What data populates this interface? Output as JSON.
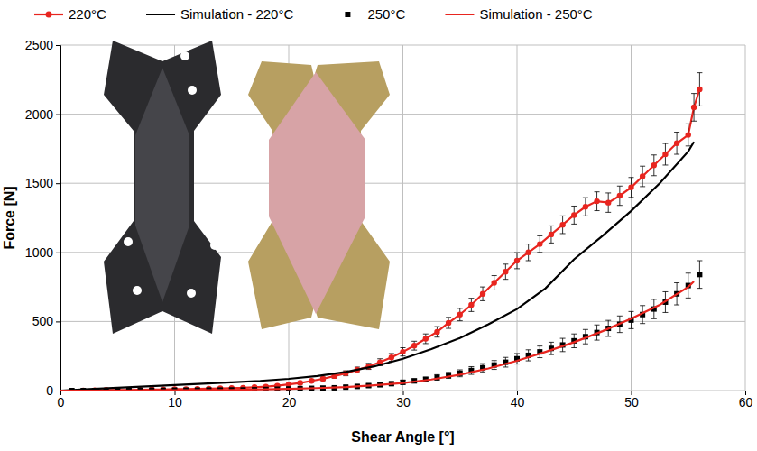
{
  "chart_data": {
    "type": "line",
    "x_label": "Shear Angle [°]",
    "y_label": "Force [N]",
    "xlim": [
      0,
      60
    ],
    "ylim": [
      0,
      2500
    ],
    "xticks": [
      0,
      10,
      20,
      30,
      40,
      50,
      60
    ],
    "yticks": [
      0,
      500,
      1000,
      1500,
      2000,
      2500
    ],
    "grid": true,
    "legend": "top",
    "series": [
      {
        "name": "220°C",
        "color": "#e8251f",
        "type": "line",
        "marker": "circle",
        "line_style": "solid",
        "x": [
          2,
          3,
          4,
          5,
          6,
          7,
          8,
          9,
          10,
          11,
          12,
          13,
          14,
          15,
          16,
          17,
          18,
          19,
          20,
          21,
          22,
          23,
          24,
          25,
          26,
          27,
          28,
          29,
          30,
          31,
          32,
          33,
          34,
          35,
          36,
          37,
          38,
          39,
          40,
          41,
          42,
          43,
          44,
          45,
          46,
          47,
          48,
          49,
          50,
          51,
          52,
          53,
          54,
          55,
          55.5,
          56
        ],
        "values": [
          0,
          2,
          5,
          5,
          5,
          6,
          8,
          8,
          10,
          10,
          12,
          14,
          16,
          18,
          20,
          24,
          28,
          35,
          45,
          55,
          70,
          85,
          105,
          125,
          150,
          175,
          205,
          240,
          280,
          325,
          375,
          425,
          490,
          550,
          620,
          700,
          780,
          860,
          940,
          1000,
          1060,
          1130,
          1200,
          1270,
          1330,
          1370,
          1360,
          1410,
          1470,
          1550,
          1630,
          1710,
          1790,
          1850,
          2050,
          2180
        ],
        "errors": [
          0,
          0,
          0,
          0,
          0,
          0,
          0,
          0,
          0,
          0,
          0,
          0,
          0,
          0,
          0,
          5,
          5,
          5,
          5,
          8,
          10,
          12,
          15,
          18,
          20,
          22,
          25,
          28,
          30,
          32,
          35,
          38,
          40,
          45,
          48,
          50,
          52,
          55,
          58,
          60,
          60,
          62,
          64,
          65,
          66,
          68,
          70,
          70,
          72,
          74,
          75,
          78,
          80,
          80,
          100,
          120
        ]
      },
      {
        "name": "Simulation - 220°C",
        "color": "#000000",
        "type": "line",
        "marker": "none",
        "line_style": "solid",
        "x": [
          0,
          2.5,
          5,
          7.5,
          10,
          12.5,
          15,
          17.5,
          20,
          22.5,
          25,
          27.5,
          30,
          32.5,
          35,
          37.5,
          40,
          42.5,
          45,
          47.5,
          50,
          52.5,
          55,
          55.5
        ],
        "values": [
          0,
          10,
          20,
          30,
          40,
          50,
          60,
          70,
          85,
          105,
          135,
          175,
          230,
          300,
          380,
          480,
          590,
          740,
          950,
          1120,
          1300,
          1500,
          1730,
          1800
        ]
      },
      {
        "name": "250°C",
        "color": "#000000",
        "type": "scatter",
        "marker": "square",
        "x": [
          1,
          2,
          3,
          4,
          5,
          6,
          7,
          8,
          9,
          10,
          11,
          12,
          13,
          14,
          15,
          16,
          17,
          18,
          19,
          20,
          21,
          22,
          23,
          24,
          25,
          26,
          27,
          28,
          29,
          30,
          31,
          32,
          33,
          34,
          35,
          36,
          37,
          38,
          39,
          40,
          41,
          42,
          43,
          44,
          45,
          46,
          47,
          48,
          49,
          50,
          51,
          52,
          53,
          54,
          55,
          56
        ],
        "values": [
          0,
          0,
          0,
          0,
          0,
          1,
          1,
          2,
          2,
          3,
          3,
          3,
          4,
          4,
          5,
          5,
          6,
          8,
          10,
          12,
          14,
          16,
          18,
          20,
          25,
          30,
          36,
          42,
          50,
          60,
          70,
          80,
          95,
          110,
          125,
          145,
          165,
          185,
          205,
          230,
          255,
          280,
          305,
          330,
          360,
          390,
          420,
          450,
          480,
          510,
          550,
          590,
          640,
          700,
          760,
          840
        ],
        "errors": [
          0,
          0,
          0,
          0,
          0,
          0,
          0,
          0,
          0,
          0,
          0,
          0,
          0,
          0,
          0,
          0,
          0,
          0,
          0,
          5,
          5,
          5,
          5,
          8,
          8,
          10,
          10,
          12,
          12,
          15,
          15,
          18,
          20,
          22,
          25,
          28,
          30,
          32,
          35,
          38,
          40,
          42,
          45,
          48,
          50,
          52,
          55,
          58,
          60,
          62,
          65,
          70,
          75,
          80,
          90,
          100
        ]
      },
      {
        "name": "Simulation - 250°C",
        "color": "#e8251f",
        "type": "line",
        "marker": "none",
        "line_style": "solid",
        "x": [
          0,
          5,
          10,
          15,
          20,
          22.5,
          25,
          27.5,
          30,
          32.5,
          35,
          37.5,
          40,
          42.5,
          45,
          47.5,
          50,
          52.5,
          55,
          55.5
        ],
        "values": [
          0,
          0,
          2,
          5,
          12,
          18,
          25,
          38,
          55,
          80,
          115,
          160,
          215,
          280,
          350,
          430,
          520,
          620,
          750,
          790
        ]
      }
    ]
  }
}
